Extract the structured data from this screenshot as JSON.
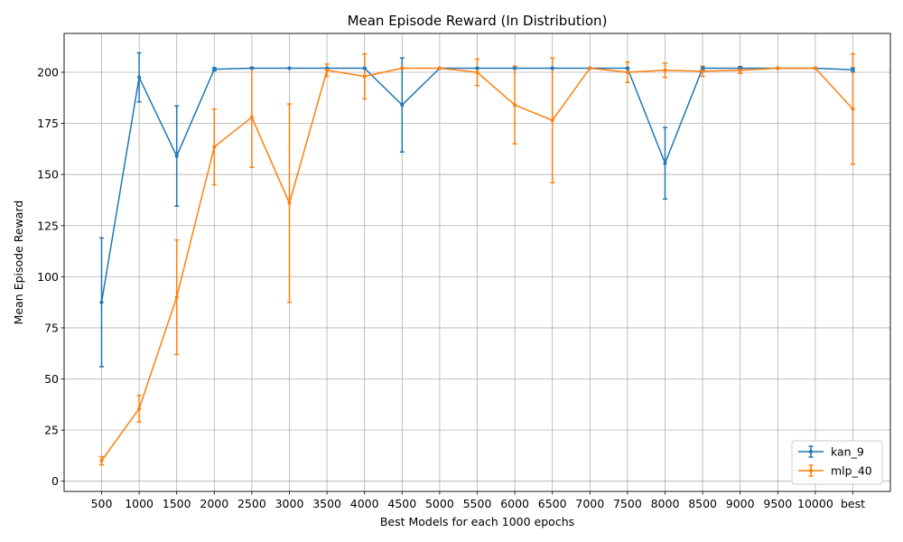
{
  "chart_data": {
    "type": "line",
    "title": "Mean Episode Reward (In Distribution)",
    "xlabel": "Best Models for each 1000 epochs",
    "ylabel": "Mean Episode Reward",
    "categories": [
      "500",
      "1000",
      "1500",
      "2000",
      "2500",
      "3000",
      "3500",
      "4000",
      "4500",
      "5000",
      "5500",
      "6000",
      "6500",
      "7000",
      "7500",
      "8000",
      "8500",
      "9000",
      "9500",
      "10000",
      "best"
    ],
    "ylim": [
      -5,
      219
    ],
    "yticks": [
      0,
      25,
      50,
      75,
      100,
      125,
      150,
      175,
      200
    ],
    "grid": true,
    "legend_position": "lower-right",
    "series": [
      {
        "name": "kan_9",
        "color": "#1f77b4",
        "values": [
          87.5,
          197.5,
          159,
          201.5,
          202,
          202,
          202,
          202,
          184,
          202,
          202,
          202,
          202,
          202,
          202,
          155.5,
          202,
          202,
          202,
          202,
          201.2
        ],
        "errors": [
          31.5,
          12,
          24.5,
          0.8,
          0,
          0,
          0,
          0,
          23,
          0,
          0,
          0,
          0,
          0,
          0,
          17.5,
          0.8,
          0.8,
          0,
          0,
          1
        ]
      },
      {
        "name": "mlp_40",
        "color": "#ff7f0e",
        "values": [
          10,
          35.5,
          90,
          163.5,
          178,
          136,
          201,
          198,
          202,
          202,
          200,
          184,
          176.5,
          202,
          200,
          201,
          200.5,
          201,
          202,
          202,
          182
        ],
        "errors": [
          2,
          6.5,
          28,
          18.5,
          24.5,
          48.5,
          3,
          11,
          0,
          0,
          6.5,
          19,
          30.5,
          0,
          5,
          3.5,
          2.5,
          1.5,
          0,
          0,
          27
        ]
      }
    ]
  }
}
